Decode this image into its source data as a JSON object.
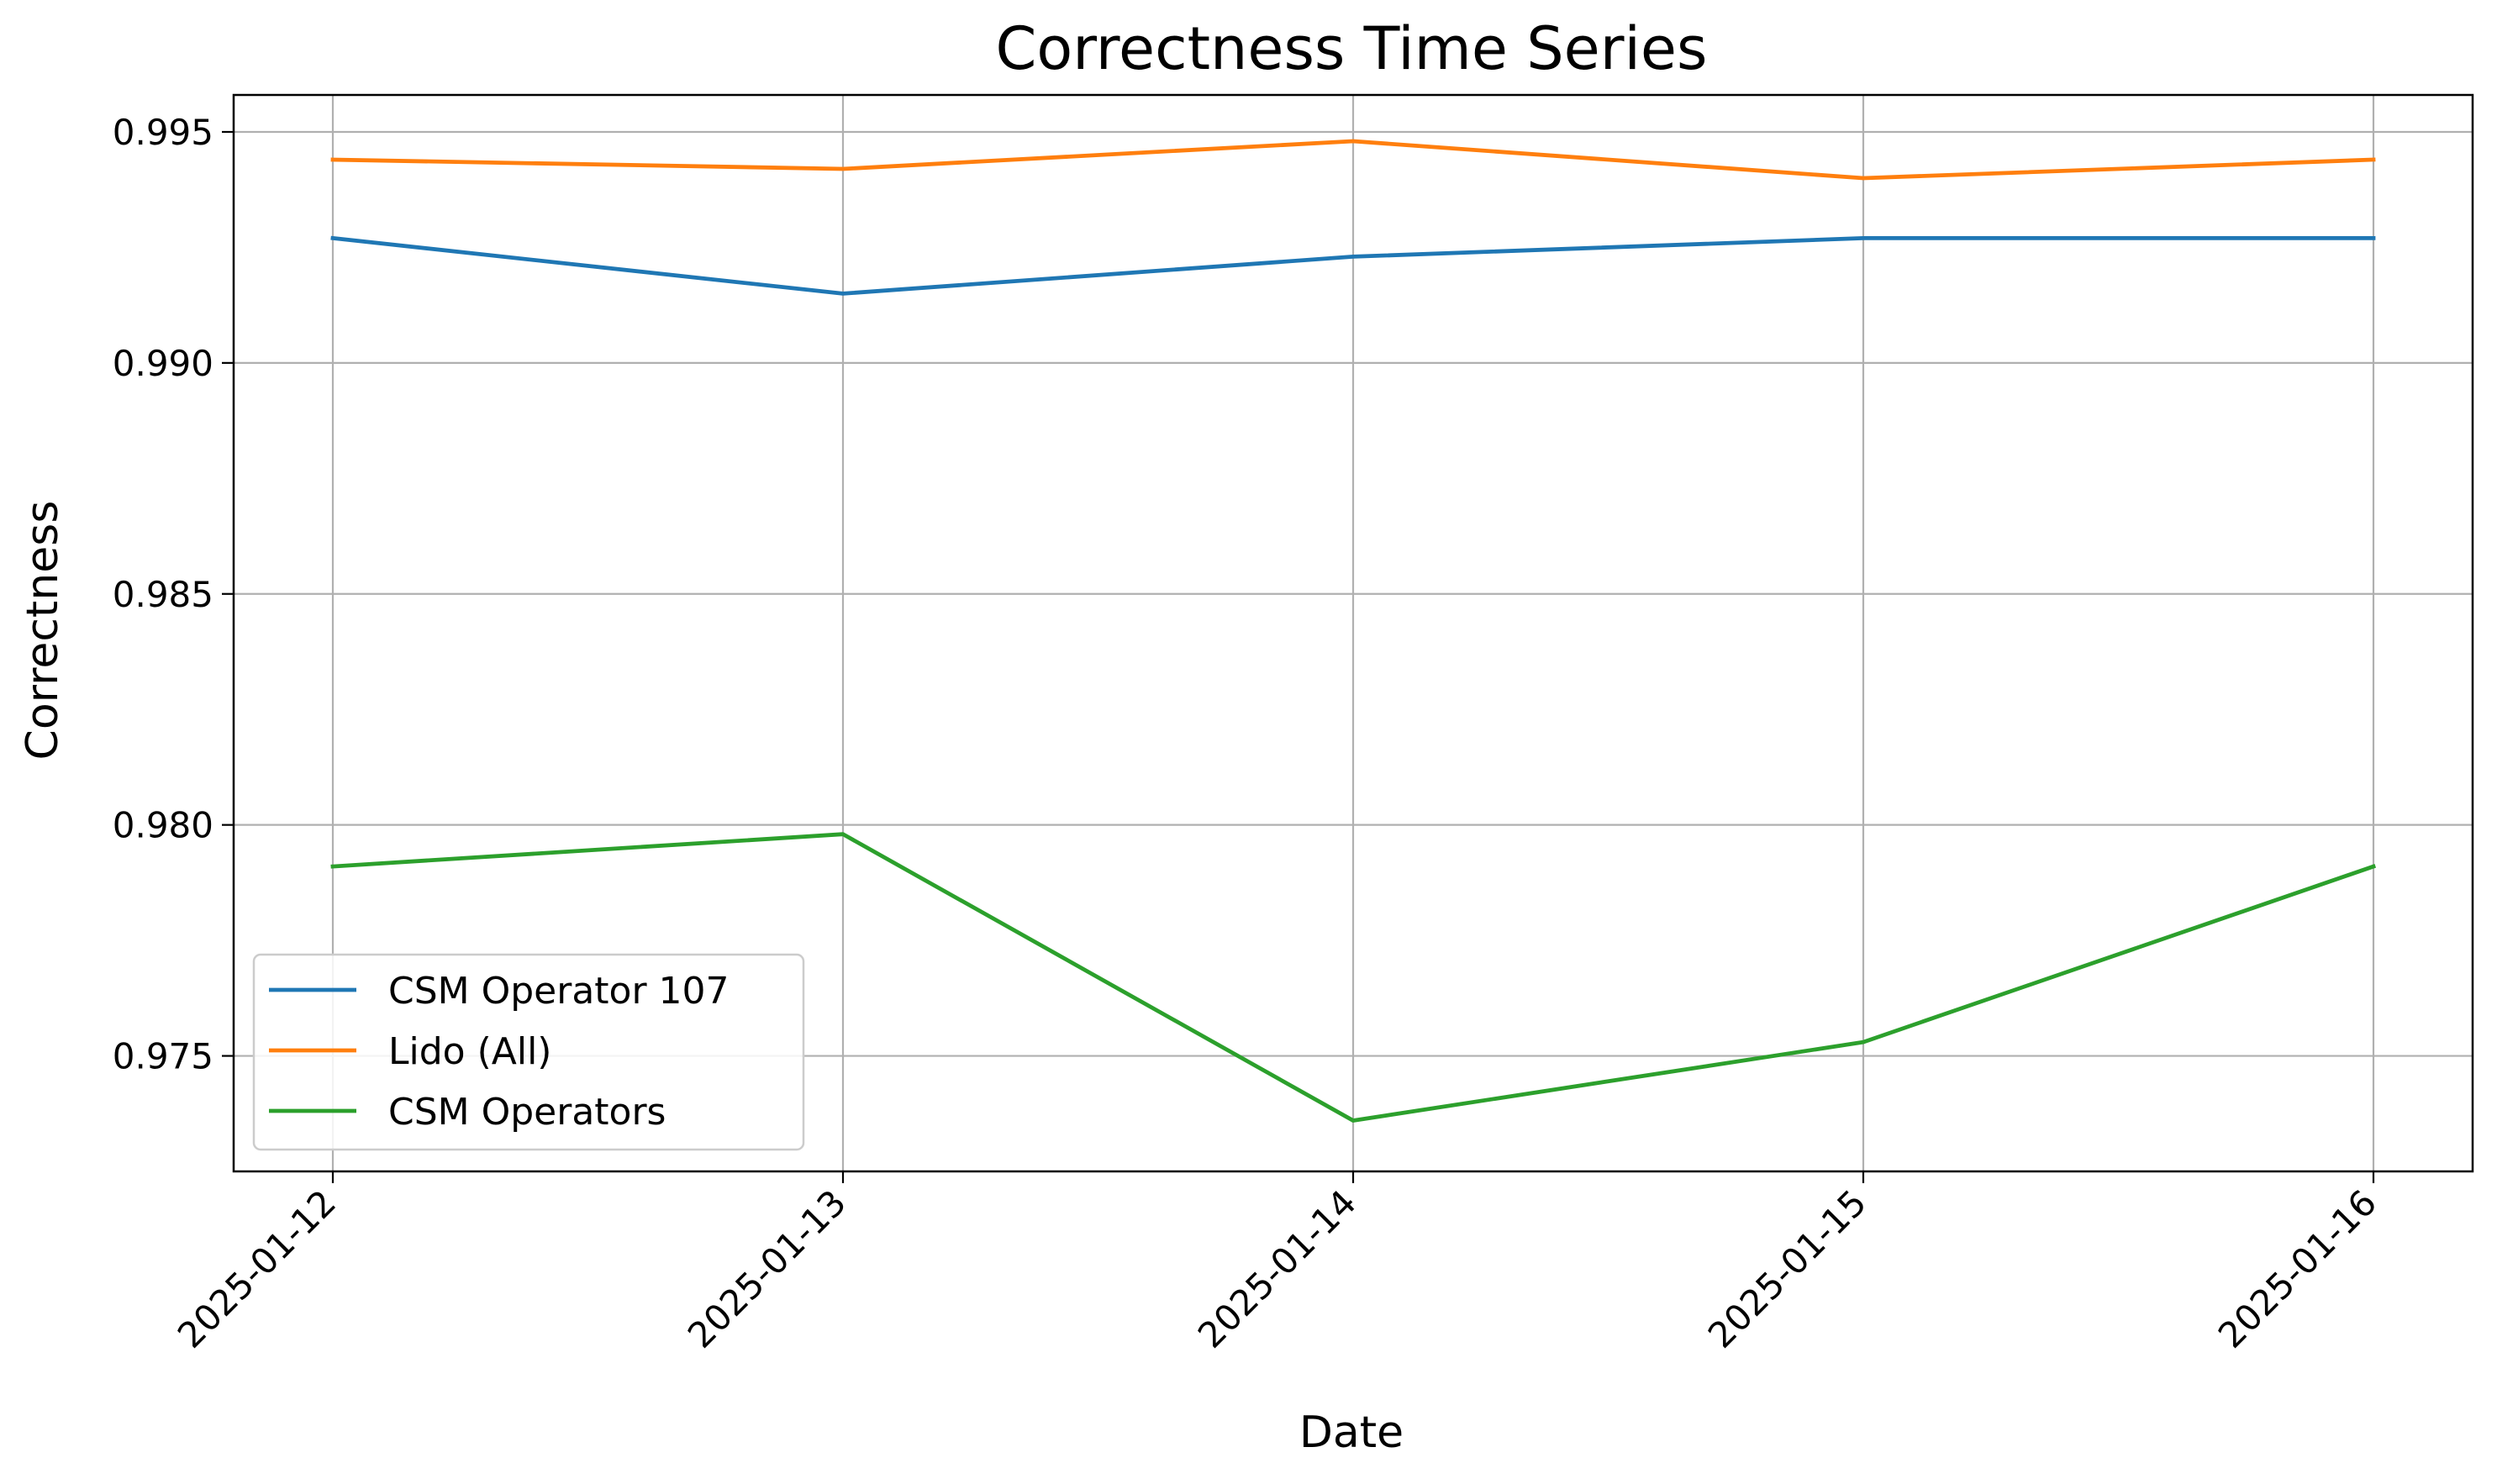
{
  "chart_data": {
    "type": "line",
    "title": "Correctness Time Series",
    "xlabel": "Date",
    "ylabel": "Correctness",
    "categories": [
      "2025-01-12",
      "2025-01-13",
      "2025-01-14",
      "2025-01-15",
      "2025-01-16"
    ],
    "ylim": [
      0.9725,
      0.9958
    ],
    "yticks": [
      "0.975",
      "0.980",
      "0.985",
      "0.990",
      "0.995"
    ],
    "ytick_values": [
      0.975,
      0.98,
      0.985,
      0.99,
      0.995
    ],
    "grid": true,
    "legend_position": "lower-left",
    "series": [
      {
        "name": "CSM Operator 107",
        "color": "#1f77b4",
        "values": [
          0.9927,
          0.9915,
          0.9923,
          0.9927,
          0.9927
        ]
      },
      {
        "name": "Lido (All)",
        "color": "#ff7f0e",
        "values": [
          0.9944,
          0.9942,
          0.9948,
          0.994,
          0.9944
        ]
      },
      {
        "name": "CSM Operators",
        "color": "#2ca02c",
        "values": [
          0.9791,
          0.9798,
          0.9736,
          0.9753,
          0.9791
        ]
      }
    ]
  }
}
